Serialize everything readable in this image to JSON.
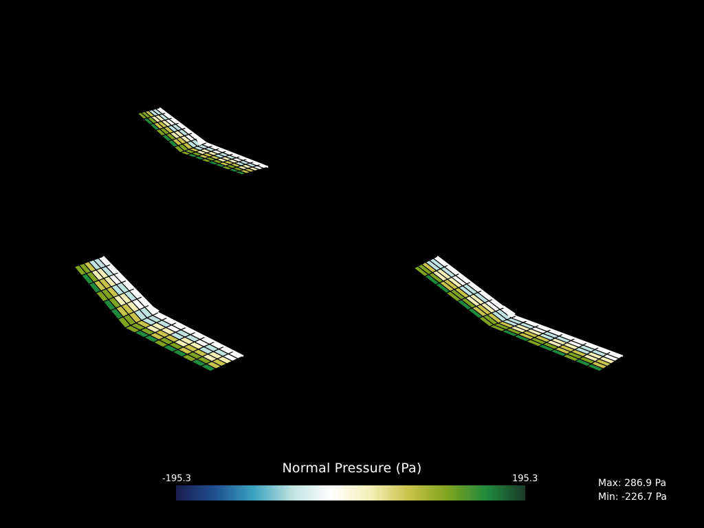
{
  "legend": {
    "title": "Normal Pressure (Pa)",
    "range_min_label": "-195.3",
    "range_max_label": "195.3",
    "colormap": [
      "#1a1d4f",
      "#1f4f8f",
      "#3aa3c0",
      "#bfe3e0",
      "#ffffff",
      "#f4f0b8",
      "#c8c34a",
      "#7fa31f",
      "#1f8a3c",
      "#1a3a2a"
    ]
  },
  "stats": {
    "max_label": "Max: 286.9 Pa",
    "min_label": "Min: -226.7 Pa"
  },
  "views": [
    {
      "name": "wing-view-top"
    },
    {
      "name": "wing-view-bottom-left"
    },
    {
      "name": "wing-view-bottom-right"
    }
  ]
}
